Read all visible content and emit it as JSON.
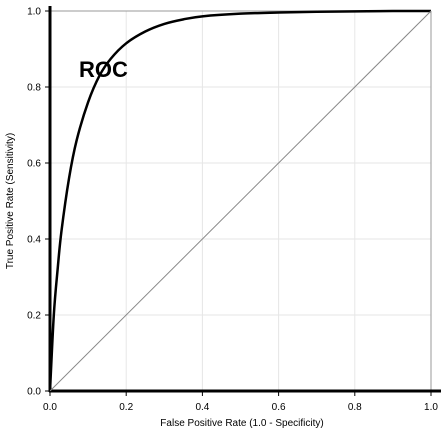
{
  "chart_data": {
    "type": "line",
    "title": "",
    "xlabel": "False Positive Rate (1.0 - Specificity)",
    "ylabel": "True Positive Rate (Sensitivity)",
    "xlim": [
      0,
      1
    ],
    "ylim": [
      0,
      1
    ],
    "x_ticks": [
      "0.0",
      "0.2",
      "0.4",
      "0.6",
      "0.8",
      "1.0"
    ],
    "y_ticks": [
      "0.0",
      "0.2",
      "0.4",
      "0.6",
      "0.8",
      "1.0"
    ],
    "grid": true,
    "annotation": "ROC",
    "series": [
      {
        "color": "#000000",
        "x": [
          0,
          0.01,
          0.02,
          0.03,
          0.05,
          0.07,
          0.1,
          0.13,
          0.16,
          0.2,
          0.25,
          0.3,
          0.35,
          0.4,
          0.5,
          0.6,
          0.7,
          0.8,
          0.9,
          1.0
        ],
        "y": [
          0,
          0.2,
          0.32,
          0.42,
          0.56,
          0.66,
          0.76,
          0.83,
          0.875,
          0.915,
          0.946,
          0.966,
          0.978,
          0.986,
          0.993,
          0.996,
          0.998,
          0.999,
          1.0,
          1.0
        ]
      },
      {
        "color": "#888888",
        "x": [
          0,
          1
        ],
        "y": [
          0,
          1
        ]
      }
    ]
  }
}
